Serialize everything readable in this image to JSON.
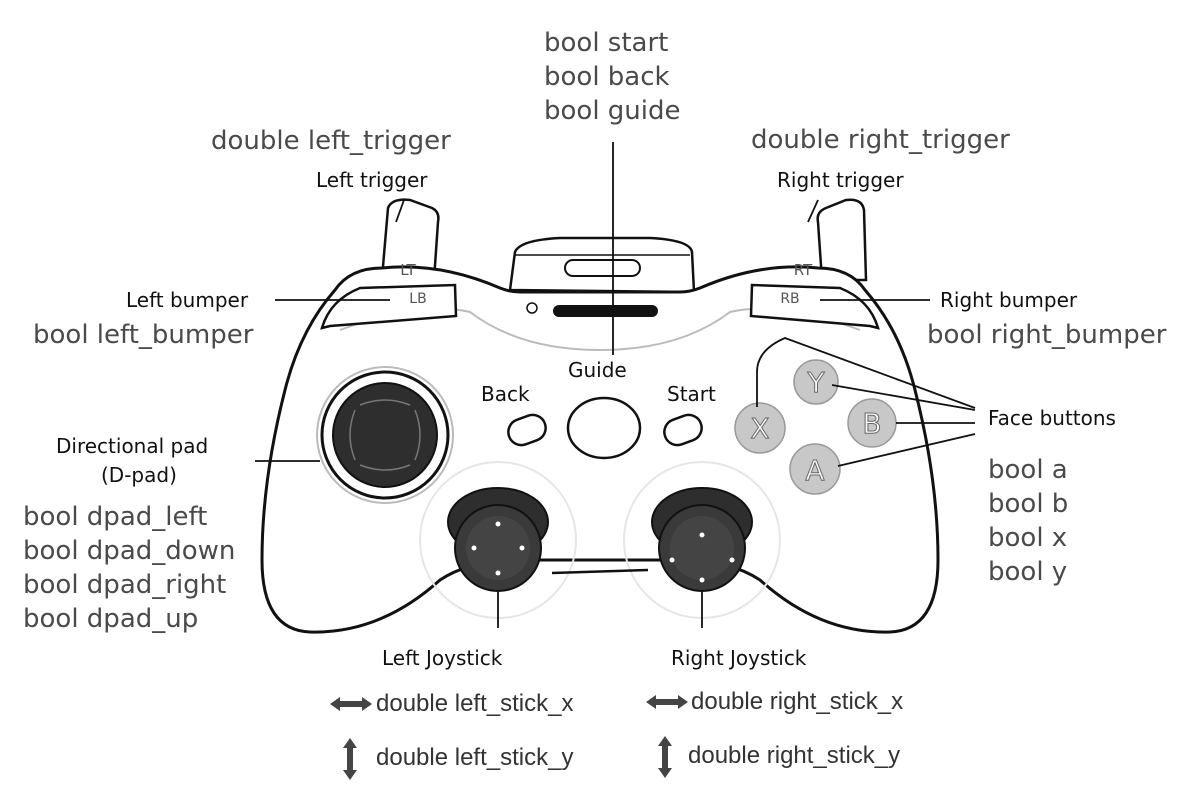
{
  "labels": {
    "left_trigger": "Left trigger",
    "right_trigger": "Right trigger",
    "left_bumper": "Left bumper",
    "right_bumper": "Right bumper",
    "guide": "Guide",
    "back": "Back",
    "start": "Start",
    "face_buttons": "Face buttons",
    "dpad_line1": "Directional pad",
    "dpad_line2": "(D-pad)",
    "left_joystick": "Left Joystick",
    "right_joystick": "Right Joystick"
  },
  "controller_marks": {
    "lt": "LT",
    "rt": "RT",
    "lb": "LB",
    "rb": "RB",
    "y": "Y",
    "x": "X",
    "b": "B",
    "a": "A"
  },
  "variables": {
    "start": "bool start",
    "back": "bool back",
    "guide": "bool guide",
    "left_trigger": "double left_trigger",
    "right_trigger": "double right_trigger",
    "left_bumper": "bool left_bumper",
    "right_bumper": "bool right_bumper",
    "dpad_left": "bool dpad_left",
    "dpad_down": "bool dpad_down",
    "dpad_right": "bool dpad_right",
    "dpad_up": "bool dpad_up",
    "a": "bool a",
    "b": "bool b",
    "x": "bool x",
    "y": "bool y",
    "left_stick_x": "double left_stick_x",
    "left_stick_y": "double left_stick_y",
    "right_stick_x": "double right_stick_x",
    "right_stick_y": "double right_stick_y"
  },
  "colors": {
    "outline": "#111111",
    "face_button_fill": "#c8c8c8",
    "stick_fill": "#2e2e2e"
  },
  "icons": {
    "horizontal_axis": "double-arrow-horizontal-icon",
    "vertical_axis": "double-arrow-vertical-icon"
  }
}
